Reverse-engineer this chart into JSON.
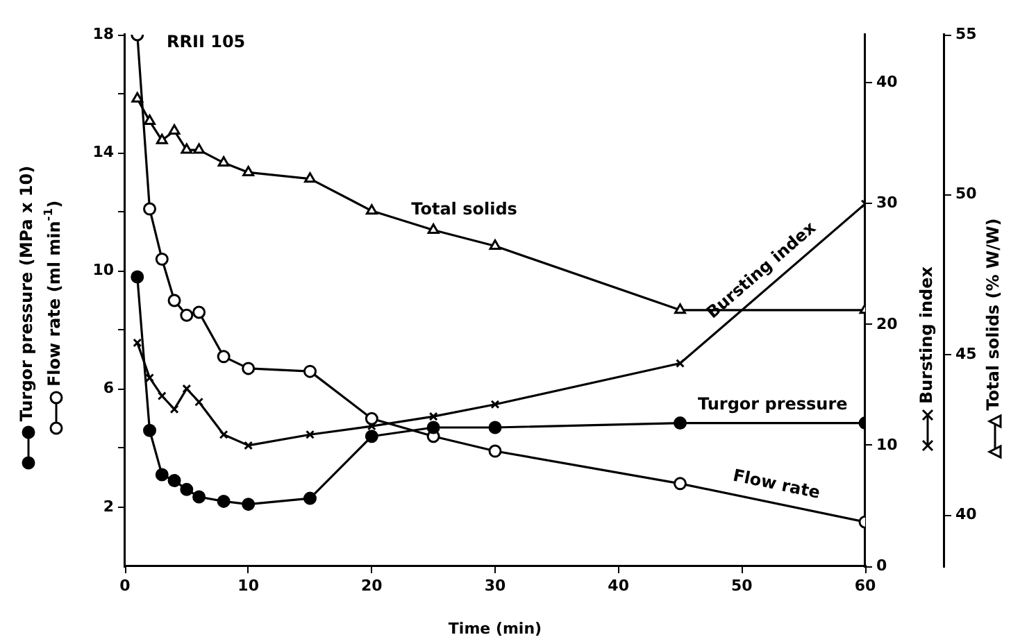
{
  "chart_data": {
    "type": "line",
    "xlabel": "Time (min)",
    "ylabel": "Turgor pressure (MPa x 10)\nFlow rate (ml min$^{-1}$)",
    "y2label": "Bursting index",
    "y3label": "Total solids (% W/W)",
    "annotations": [
      "RRII 105"
    ],
    "xlim": [
      0,
      60
    ],
    "xticks": [
      0,
      10,
      20,
      30,
      40,
      50,
      60
    ],
    "ylim": [
      0,
      18
    ],
    "yticks": [
      {
        "value": 2,
        "label": "2"
      },
      {
        "value": 4,
        "label": null
      },
      {
        "value": 6,
        "label": "6"
      },
      {
        "value": 8,
        "label": null
      },
      {
        "value": 10,
        "label": "10"
      },
      {
        "value": 12,
        "label": null
      },
      {
        "value": 14,
        "label": "14"
      },
      {
        "value": 16,
        "label": null
      },
      {
        "value": 18,
        "label": "18"
      }
    ],
    "y2lim": [
      0,
      44
    ],
    "y2ticks": [
      0,
      10,
      20,
      30,
      40
    ],
    "y3lim": [
      38.4,
      55
    ],
    "y3ticks": [
      40,
      45,
      50,
      55
    ],
    "grid": false,
    "legend": false,
    "line_style": "solid",
    "series": [
      {
        "name": "Turgor pressure",
        "color": "#000000",
        "marker": "circle",
        "axis": "y",
        "x": [
          1,
          2,
          3,
          4,
          5,
          6,
          8,
          10,
          15,
          20,
          25,
          30,
          45,
          60
        ],
        "values": [
          9.8,
          4.6,
          3.1,
          2.9,
          2.6,
          2.35,
          2.2,
          2.1,
          2.3,
          4.4,
          4.7,
          4.7,
          4.85,
          4.85
        ]
      },
      {
        "name": "Flow rate",
        "color": "#000000",
        "marker": "circle",
        "axis": "y",
        "x": [
          1,
          2,
          3,
          4,
          5,
          6,
          8,
          10,
          15,
          20,
          25,
          30,
          45,
          60
        ],
        "values": [
          18,
          12.1,
          10.4,
          9,
          8.5,
          8.6,
          7.1,
          6.7,
          6.6,
          5,
          4.4,
          3.9,
          2.8,
          1.5
        ]
      },
      {
        "name": "Bursting index",
        "color": "#000000",
        "marker": "cross",
        "axis": "y2",
        "x": [
          1,
          2,
          3,
          4,
          5,
          6,
          8,
          10,
          15,
          20,
          25,
          30,
          45,
          60
        ],
        "values": [
          18.5,
          15.6,
          14.1,
          13,
          14.7,
          13.6,
          10.9,
          10,
          10.9,
          11.6,
          12.4,
          13.4,
          16.8,
          30
        ]
      },
      {
        "name": "Total solids",
        "color": "#000000",
        "marker": "triangle",
        "axis": "y3",
        "x": [
          1,
          2,
          3,
          4,
          5,
          6,
          8,
          10,
          15,
          20,
          25,
          30,
          45,
          60
        ],
        "values": [
          53,
          52.3,
          51.7,
          52,
          51.4,
          51.4,
          51,
          50.7,
          50.5,
          49.5,
          48.9,
          48.4,
          46.4,
          46.4
        ]
      }
    ]
  }
}
